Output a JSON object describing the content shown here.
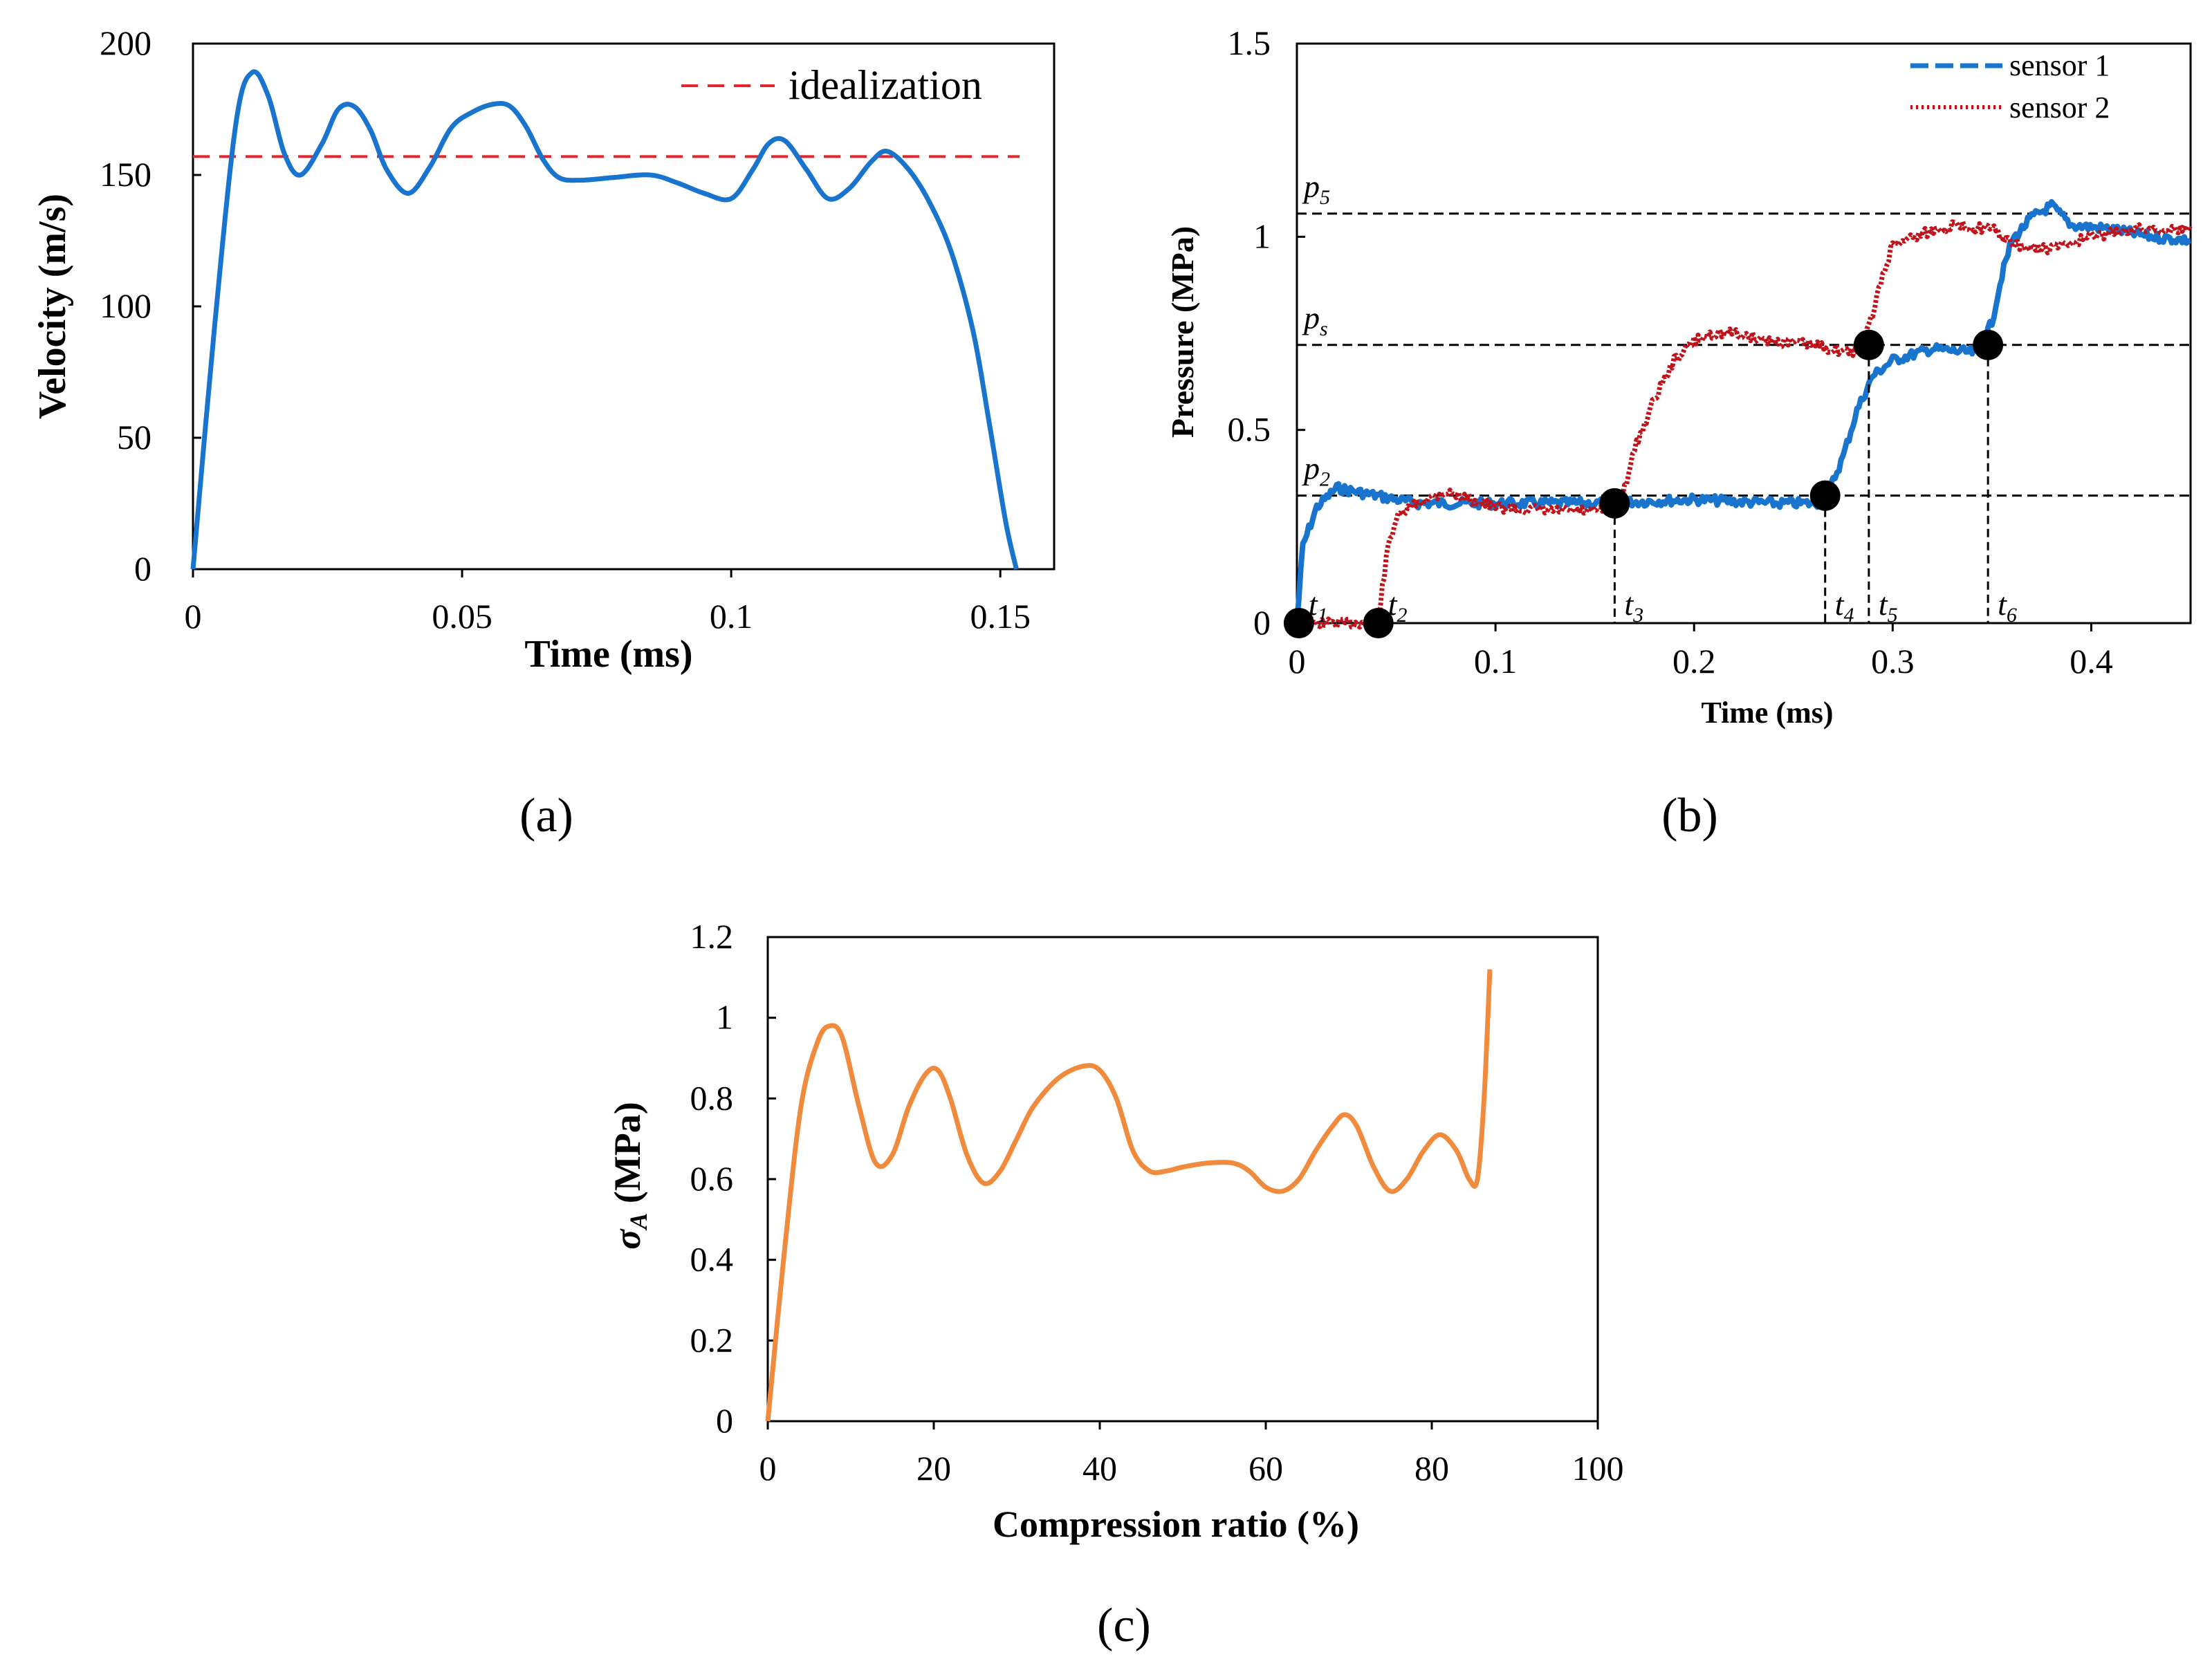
{
  "chart_data": [
    {
      "panel": "a",
      "type": "line",
      "xlabel": "Time (ms)",
      "ylabel": "Velocity (m/s)",
      "xlim": [
        0,
        0.16
      ],
      "ylim": [
        0,
        200
      ],
      "xticks": [
        "0",
        "0.05",
        "0.1",
        "0.15"
      ],
      "xtick_values": [
        0,
        0.05,
        0.1,
        0.15
      ],
      "yticks": [
        "0",
        "50",
        "100",
        "150",
        "200"
      ],
      "ytick_values": [
        0,
        50,
        100,
        150,
        200
      ],
      "legend": [
        {
          "name": "idealization",
          "color": "#e8222a",
          "style": "dashed"
        }
      ],
      "series": [
        {
          "name": "velocity",
          "color": "#1874cd",
          "x": [
            0,
            0.004,
            0.008,
            0.011,
            0.014,
            0.017,
            0.02,
            0.024,
            0.027,
            0.03,
            0.033,
            0.036,
            0.04,
            0.044,
            0.048,
            0.052,
            0.056,
            0.059,
            0.062,
            0.065,
            0.068,
            0.072,
            0.078,
            0.085,
            0.09,
            0.095,
            0.1,
            0.104,
            0.107,
            0.11,
            0.114,
            0.118,
            0.122,
            0.126,
            0.129,
            0.133,
            0.137,
            0.141,
            0.145,
            0.148,
            0.151,
            0.153
          ],
          "values": [
            0,
            92,
            170,
            189,
            180,
            158,
            150,
            162,
            175,
            176,
            167,
            152,
            143,
            153,
            168,
            174,
            177,
            176,
            168,
            156,
            149,
            148,
            149,
            150,
            147,
            143,
            141,
            152,
            162,
            163,
            152,
            141,
            145,
            155,
            159,
            152,
            139,
            120,
            90,
            55,
            18,
            0
          ]
        },
        {
          "name": "idealization",
          "color": "#e8222a",
          "x": [
            0,
            0.16
          ],
          "values": [
            157,
            157
          ]
        }
      ]
    },
    {
      "panel": "b",
      "type": "line",
      "xlabel": "Time (ms)",
      "ylabel": "Pressure (MPa)",
      "xlim": [
        0,
        0.45
      ],
      "ylim": [
        0,
        1.5
      ],
      "xticks": [
        "0",
        "0.1",
        "0.2",
        "0.3",
        "0.4"
      ],
      "xtick_values": [
        0,
        0.1,
        0.2,
        0.3,
        0.4
      ],
      "yticks": [
        "0",
        "0.5",
        "1",
        "1.5"
      ],
      "ytick_values": [
        0,
        0.5,
        1,
        1.5
      ],
      "legend": [
        {
          "name": "sensor 1",
          "color": "#1874cd",
          "style": "dashed"
        },
        {
          "name": "sensor 2",
          "color": "#c0141c",
          "style": "dotted"
        }
      ],
      "series": [
        {
          "name": "sensor 1",
          "color": "#1874cd",
          "x": [
            0,
            0.003,
            0.01,
            0.02,
            0.03,
            0.06,
            0.1,
            0.15,
            0.2,
            0.24,
            0.262,
            0.267,
            0.275,
            0.282,
            0.29,
            0.3,
            0.32,
            0.34,
            0.345,
            0.35,
            0.355,
            0.36,
            0.37,
            0.38,
            0.39,
            0.41,
            0.43,
            0.45
          ],
          "values": [
            0,
            0.2,
            0.3,
            0.35,
            0.34,
            0.31,
            0.31,
            0.31,
            0.32,
            0.31,
            0.31,
            0.33,
            0.43,
            0.55,
            0.64,
            0.68,
            0.71,
            0.7,
            0.72,
            0.78,
            0.9,
            0.99,
            1.05,
            1.08,
            1.03,
            1.02,
            1.0,
            0.99
          ]
        },
        {
          "name": "sensor 2",
          "color": "#c0141c",
          "x": [
            0,
            0.038,
            0.042,
            0.046,
            0.05,
            0.06,
            0.075,
            0.1,
            0.13,
            0.16,
            0.165,
            0.17,
            0.18,
            0.19,
            0.2,
            0.21,
            0.22,
            0.24,
            0.26,
            0.28,
            0.286,
            0.29,
            0.295,
            0.3,
            0.31,
            0.33,
            0.35,
            0.36,
            0.37,
            0.38,
            0.4,
            0.42,
            0.45
          ],
          "values": [
            0,
            0,
            0.05,
            0.2,
            0.27,
            0.31,
            0.34,
            0.3,
            0.29,
            0.29,
            0.35,
            0.45,
            0.58,
            0.68,
            0.73,
            0.75,
            0.75,
            0.73,
            0.72,
            0.7,
            0.74,
            0.8,
            0.9,
            0.98,
            1.0,
            1.03,
            1.02,
            0.98,
            0.97,
            0.97,
            1.0,
            1.02,
            1.02
          ]
        }
      ],
      "reference_lines": [
        {
          "label": "p2",
          "value": 0.33
        },
        {
          "label": "ps",
          "value": 0.72
        },
        {
          "label": "p5",
          "value": 1.06
        }
      ],
      "markers": [
        {
          "label": "t1",
          "t": 0.001,
          "p": 0
        },
        {
          "label": "t2",
          "t": 0.041,
          "p": 0
        },
        {
          "label": "t3",
          "t": 0.16,
          "p": 0.31
        },
        {
          "label": "t4",
          "t": 0.266,
          "p": 0.33
        },
        {
          "label": "t5",
          "t": 0.288,
          "p": 0.72
        },
        {
          "label": "t6",
          "t": 0.348,
          "p": 0.72
        }
      ],
      "annotations": {
        "p2": {
          "base": "p",
          "sub": "2"
        },
        "ps": {
          "base": "p",
          "sub": "s"
        },
        "p5": {
          "base": "p",
          "sub": "5"
        },
        "t1": {
          "base": "t",
          "sub": "1"
        },
        "t2": {
          "base": "t",
          "sub": "2"
        },
        "t3": {
          "base": "t",
          "sub": "3"
        },
        "t4": {
          "base": "t",
          "sub": "4"
        },
        "t5": {
          "base": "t",
          "sub": "5"
        },
        "t6": {
          "base": "t",
          "sub": "6"
        }
      }
    },
    {
      "panel": "c",
      "type": "line",
      "xlabel": "Compression ratio (%)",
      "ylabel": {
        "base": "σ",
        "sub": "A",
        "rest": " (MPa)"
      },
      "xlim": [
        0,
        100
      ],
      "ylim": [
        0,
        1.2
      ],
      "xticks": [
        "0",
        "20",
        "40",
        "60",
        "80",
        "100"
      ],
      "xtick_values": [
        0,
        20,
        40,
        60,
        80,
        100
      ],
      "yticks": [
        "0",
        "0.2",
        "0.4",
        "0.6",
        "0.8",
        "1",
        "1.2"
      ],
      "ytick_values": [
        0,
        0.2,
        0.4,
        0.6,
        0.8,
        1.0,
        1.2
      ],
      "series": [
        {
          "name": "stress",
          "color": "#f08a3c",
          "x": [
            0,
            2,
            4,
            6,
            7.5,
            9,
            11,
            13,
            15,
            17,
            19,
            20.5,
            22,
            24,
            26,
            28,
            30,
            32,
            35,
            38,
            40,
            42,
            44,
            46,
            48,
            50,
            53,
            56,
            58,
            60,
            62,
            64,
            66,
            68,
            69.5,
            71,
            73,
            75,
            77,
            79,
            81,
            83,
            84.5,
            85.5,
            86.3,
            87
          ],
          "values": [
            0,
            0.42,
            0.78,
            0.94,
            0.98,
            0.95,
            0.78,
            0.64,
            0.66,
            0.78,
            0.86,
            0.87,
            0.8,
            0.66,
            0.59,
            0.62,
            0.7,
            0.78,
            0.85,
            0.88,
            0.87,
            0.8,
            0.67,
            0.62,
            0.62,
            0.63,
            0.64,
            0.64,
            0.62,
            0.58,
            0.57,
            0.6,
            0.67,
            0.73,
            0.76,
            0.73,
            0.63,
            0.57,
            0.6,
            0.67,
            0.71,
            0.67,
            0.6,
            0.6,
            0.8,
            1.12
          ]
        }
      ]
    }
  ],
  "panel_labels": [
    "(a)",
    "(b)",
    "(c)"
  ]
}
